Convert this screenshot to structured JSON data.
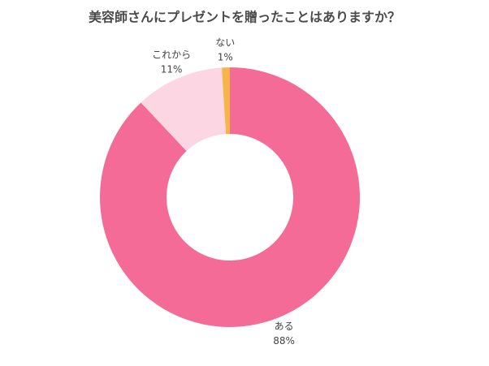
{
  "chart_data": {
    "type": "pie",
    "title": "美容師さんにプレゼントを贈ったことはありますか？",
    "categories": [
      "ある",
      "これから",
      "ない"
    ],
    "values": [
      88,
      11,
      1
    ],
    "value_labels": [
      "88%",
      "11%",
      "1%"
    ],
    "colors": [
      "#f46b98",
      "#fdd6e3",
      "#f7b548"
    ]
  }
}
